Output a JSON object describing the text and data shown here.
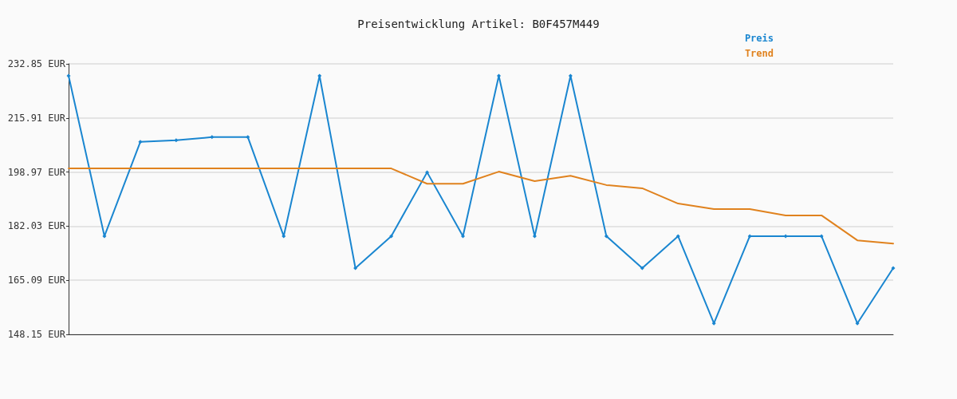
{
  "chart_data": {
    "type": "line",
    "title": "Preisentwicklung Artikel: B0F457M449",
    "categories": [
      null,
      null,
      null,
      null,
      null,
      null,
      null,
      null,
      null,
      null,
      null,
      null,
      null,
      null,
      null,
      null,
      null,
      null,
      null,
      null,
      null,
      null,
      null,
      null
    ],
    "series": [
      {
        "name": "Preis",
        "color": "#1a86d0",
        "marker": "diamond",
        "values": [
          229.1,
          178.9,
          208.4,
          208.9,
          209.9,
          209.9,
          178.9,
          229.1,
          168.9,
          178.9,
          198.9,
          178.9,
          229.1,
          178.9,
          229.1,
          178.9,
          168.9,
          178.9,
          151.6,
          178.9,
          178.9,
          178.9,
          151.6,
          168.9
        ]
      },
      {
        "name": "Trend",
        "color": "#e0821e",
        "marker": "none",
        "values": [
          200.1,
          200.1,
          200.1,
          200.1,
          200.1,
          200.1,
          200.1,
          200.1,
          200.1,
          200.1,
          195.3,
          195.3,
          199.1,
          196.1,
          197.8,
          194.9,
          193.9,
          189.1,
          187.4,
          187.4,
          185.4,
          185.4,
          177.6,
          176.6
        ]
      }
    ],
    "ylim": [
      148.15,
      232.85
    ],
    "yticks": [
      {
        "value": 148.15,
        "label": "148.15 EUR"
      },
      {
        "value": 165.09,
        "label": "165.09 EUR"
      },
      {
        "value": 182.03,
        "label": "182.03 EUR"
      },
      {
        "value": 198.97,
        "label": "198.97 EUR"
      },
      {
        "value": 215.91,
        "label": "215.91 EUR"
      },
      {
        "value": 232.85,
        "label": "232.85 EUR"
      }
    ],
    "grid": "y",
    "legend": "top right",
    "line_style": "solid"
  }
}
